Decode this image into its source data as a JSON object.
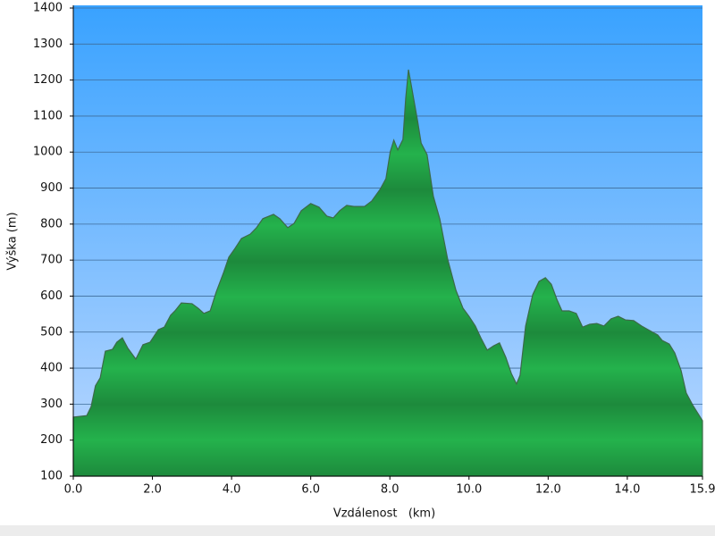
{
  "chart_data": {
    "type": "area",
    "ylabel": "Výška (m)",
    "xlabel": "Vzdálenost   (km)",
    "color": "#22a84a",
    "grid": true,
    "xlim": [
      0,
      15.9
    ],
    "ylim": [
      100,
      1400
    ],
    "xticks": [
      {
        "value": 0,
        "label": "0.0"
      },
      {
        "value": 2,
        "label": "2.0"
      },
      {
        "value": 4,
        "label": "4.0"
      },
      {
        "value": 6,
        "label": "6.0"
      },
      {
        "value": 8,
        "label": "8.0"
      },
      {
        "value": 10,
        "label": "10.0"
      },
      {
        "value": 12,
        "label": "12.0"
      },
      {
        "value": 14,
        "label": "14.0"
      },
      15.9
    ],
    "yticks": [
      100,
      200,
      300,
      400,
      500,
      600,
      700,
      800,
      900,
      1000,
      1100,
      1200,
      1300,
      1400
    ],
    "x": [
      0,
      0.34,
      0.45,
      0.56,
      0.68,
      0.81,
      0.99,
      1.1,
      1.24,
      1.38,
      1.58,
      1.76,
      1.94,
      2.15,
      2.3,
      2.46,
      2.57,
      2.73,
      3.0,
      3.16,
      3.3,
      3.46,
      3.61,
      3.8,
      3.93,
      4.09,
      4.25,
      4.47,
      4.63,
      4.79,
      5.06,
      5.22,
      5.42,
      5.58,
      5.76,
      6.0,
      6.21,
      6.41,
      6.57,
      6.73,
      6.91,
      7.09,
      7.36,
      7.54,
      7.75,
      7.9,
      8.01,
      8.1,
      8.2,
      8.33,
      8.4,
      8.47,
      8.56,
      8.7,
      8.79,
      8.94,
      9.1,
      9.26,
      9.46,
      9.67,
      9.85,
      10.0,
      10.16,
      10.3,
      10.46,
      10.62,
      10.77,
      10.93,
      11.07,
      11.2,
      11.29,
      11.43,
      11.61,
      11.77,
      11.93,
      12.08,
      12.22,
      12.35,
      12.53,
      12.71,
      12.87,
      13.05,
      13.23,
      13.41,
      13.59,
      13.77,
      13.95,
      14.16,
      14.36,
      14.57,
      14.77,
      14.88,
      15.06,
      15.2,
      15.36,
      15.49,
      15.65,
      15.9
    ],
    "values": [
      264,
      268,
      293,
      351,
      373,
      447,
      452,
      472,
      484,
      455,
      425,
      465,
      472,
      507,
      514,
      547,
      559,
      581,
      579,
      566,
      552,
      559,
      611,
      666,
      708,
      733,
      760,
      772,
      790,
      815,
      827,
      815,
      790,
      802,
      837,
      857,
      847,
      822,
      817,
      837,
      852,
      849,
      849,
      864,
      896,
      926,
      1001,
      1033,
      1006,
      1035,
      1149,
      1229,
      1174,
      1087,
      1025,
      993,
      877,
      815,
      703,
      616,
      566,
      544,
      517,
      484,
      450,
      462,
      470,
      430,
      385,
      356,
      380,
      517,
      604,
      641,
      651,
      633,
      591,
      559,
      559,
      552,
      514,
      522,
      524,
      517,
      537,
      544,
      534,
      532,
      517,
      504,
      492,
      477,
      467,
      442,
      393,
      331,
      298,
      254
    ]
  }
}
